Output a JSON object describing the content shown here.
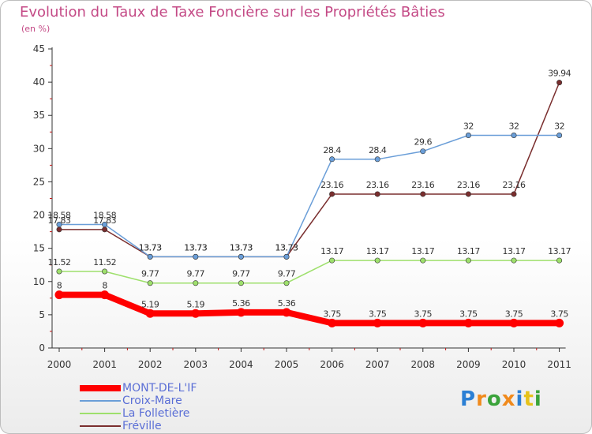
{
  "title": "Evolution du Taux de Taxe Foncière sur les Propriétés Bâties",
  "unit": "(en %)",
  "logo": {
    "text": "Proxiti",
    "letters": [
      "P",
      "r",
      "o",
      "x",
      "i",
      "t",
      "i"
    ],
    "colors": [
      "#2b7fd4",
      "#f08a1c",
      "#3aa33a",
      "#f08a1c",
      "#2b7fd4",
      "#e6c21a",
      "#3aa33a"
    ]
  },
  "chart_data": {
    "type": "line",
    "x": [
      "2000",
      "2001",
      "2002",
      "2003",
      "2004",
      "2005",
      "2006",
      "2007",
      "2008",
      "2009",
      "2010",
      "2011"
    ],
    "ylim": [
      0,
      45
    ],
    "yticks": [
      0,
      5,
      10,
      15,
      20,
      25,
      30,
      35,
      40,
      45
    ],
    "grid": false,
    "legend_position": "bottom-left",
    "series": [
      {
        "name": "Fréville",
        "color": "#7a2e2e",
        "values": [
          17.83,
          17.83,
          13.73,
          13.73,
          13.73,
          13.73,
          23.16,
          23.16,
          23.16,
          23.16,
          23.16,
          39.94
        ],
        "labels": [
          "17.83",
          "17.83",
          "13.73",
          "13.73",
          "13.73",
          "13.73",
          "23.16",
          "23.16",
          "23.16",
          "23.16",
          "23.16",
          "39.94"
        ]
      },
      {
        "name": "La Folletière",
        "color": "#9ee06c",
        "values": [
          11.52,
          11.52,
          9.77,
          9.77,
          9.77,
          9.77,
          13.17,
          13.17,
          13.17,
          13.17,
          13.17,
          13.17
        ],
        "labels": [
          "11.52",
          "11.52",
          "9.77",
          "9.77",
          "9.77",
          "9.77",
          "13.17",
          "13.17",
          "13.17",
          "13.17",
          "13.17",
          "13.17"
        ]
      },
      {
        "name": "Croix-Mare",
        "color": "#6a9ed8",
        "values": [
          18.58,
          18.58,
          13.73,
          13.73,
          13.73,
          13.73,
          28.4,
          28.4,
          29.6,
          32,
          32,
          32
        ],
        "labels": [
          "18.58",
          "18.58",
          "13.73",
          "13.73",
          "13.73",
          "13.73",
          "28.4",
          "28.4",
          "29.6",
          "32",
          "32",
          "32"
        ]
      },
      {
        "name": "MONT-DE-L'IF",
        "color": "#ff0000",
        "values": [
          8,
          8,
          5.19,
          5.19,
          5.36,
          5.36,
          3.75,
          3.75,
          3.75,
          3.75,
          3.75,
          3.75
        ],
        "labels": [
          "8",
          "8",
          "5.19",
          "5.19",
          "5.36",
          "5.36",
          "3.75",
          "3.75",
          "3.75",
          "3.75",
          "3.75",
          "3.75"
        ]
      }
    ],
    "legend_order": [
      "MONT-DE-L'IF",
      "Croix-Mare",
      "La Folletière",
      "Fréville"
    ]
  }
}
